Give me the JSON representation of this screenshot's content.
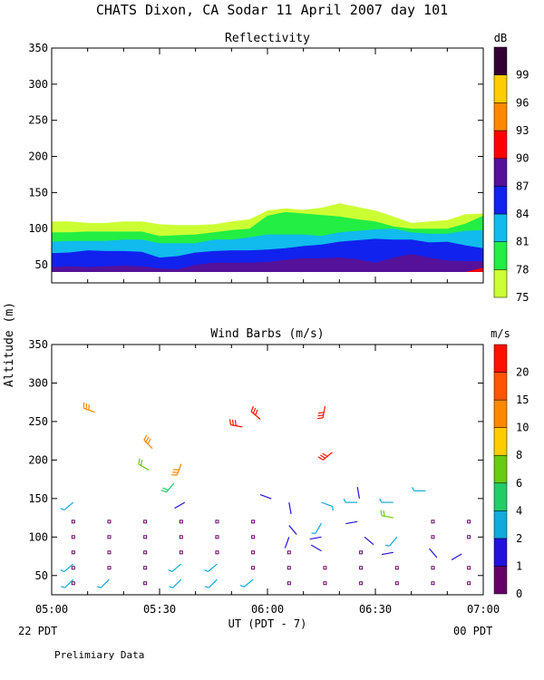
{
  "title": "CHATS Dixon, CA  Sodar  11 April 2007  day 101",
  "ylabel": "Altitude (m)",
  "xlabel": "UT  (PDT - 7)",
  "left_note": "22 PDT",
  "right_note": "00 PDT",
  "footer": "Prelimiary Data",
  "colors": {
    "scale": [
      "#ccff33",
      "#22ee44",
      "#11bbee",
      "#1122ee",
      "#551199",
      "#ff0000",
      "#ff8800",
      "#ffcc00",
      "#330033"
    ],
    "wind": [
      "#660066",
      "#2211dd",
      "#11aadd",
      "#22cc66",
      "#66cc11",
      "#ffcc00",
      "#ff8800",
      "#ff5500",
      "#ff1100"
    ]
  },
  "chart_data": [
    {
      "type": "area",
      "title": "Reflectivity",
      "xlabel": "",
      "ylabel": "Altitude (m)",
      "xlim_minutes_ut": [
        300,
        420
      ],
      "xticks": [
        "05:00",
        "05:30",
        "06:00",
        "06:30",
        "07:00"
      ],
      "ylim": [
        25,
        350
      ],
      "yticks": [
        50,
        100,
        150,
        200,
        250,
        300,
        350
      ],
      "colorbar_title": "dB",
      "colorbar_ticks": [
        75,
        78,
        81,
        84,
        87,
        90,
        93,
        96,
        99
      ],
      "x_minutes_ut": [
        300,
        305,
        310,
        315,
        320,
        325,
        330,
        335,
        340,
        345,
        350,
        355,
        360,
        365,
        370,
        375,
        380,
        385,
        390,
        395,
        400,
        405,
        410,
        415,
        420
      ],
      "floor": 40,
      "contours": [
        {
          "level_db": 75,
          "top": [
            110,
            110,
            108,
            108,
            110,
            110,
            106,
            105,
            105,
            106,
            110,
            113,
            125,
            128,
            126,
            129,
            135,
            130,
            125,
            117,
            108,
            110,
            112,
            120,
            121
          ]
        },
        {
          "level_db": 78,
          "top": [
            95,
            95,
            96,
            96,
            96,
            96,
            90,
            91,
            92,
            95,
            98,
            100,
            118,
            123,
            121,
            119,
            117,
            113,
            110,
            103,
            100,
            100,
            100,
            107,
            118
          ]
        },
        {
          "level_db": 81,
          "top": [
            82,
            83,
            83,
            83,
            85,
            85,
            80,
            80,
            80,
            85,
            85,
            88,
            92,
            92,
            92,
            90,
            95,
            97,
            99,
            100,
            95,
            93,
            93,
            97,
            98
          ]
        },
        {
          "level_db": 84,
          "top": [
            66,
            67,
            70,
            69,
            69,
            68,
            60,
            62,
            67,
            69,
            70,
            70,
            71,
            73,
            76,
            78,
            82,
            84,
            86,
            85,
            85,
            81,
            82,
            77,
            73
          ]
        },
        {
          "level_db": 87,
          "top": [
            47,
            48,
            47,
            48,
            49,
            48,
            45,
            44,
            50,
            53,
            53,
            53,
            54,
            57,
            59,
            59,
            60,
            58,
            53,
            60,
            65,
            60,
            56,
            55,
            55
          ]
        },
        {
          "level_db": 90,
          "top": [
            40,
            40,
            40,
            40,
            40,
            40,
            40,
            40,
            40,
            40,
            40,
            40,
            40,
            40,
            40,
            40,
            40,
            40,
            40,
            40,
            40,
            40,
            40,
            40,
            46
          ]
        }
      ]
    },
    {
      "type": "scatter",
      "title": "Wind Barbs (m/s)",
      "xlabel": "UT  (PDT - 7)",
      "ylabel": "Altitude (m)",
      "xlim_minutes_ut": [
        300,
        420
      ],
      "xticks": [
        "05:00",
        "05:30",
        "06:00",
        "06:30",
        "07:00"
      ],
      "ylim": [
        25,
        350
      ],
      "yticks": [
        50,
        100,
        150,
        200,
        250,
        300,
        350
      ],
      "colorbar_title": "m/s",
      "colorbar_ticks": [
        0,
        1,
        2,
        4,
        6,
        8,
        10,
        15,
        20
      ],
      "barbs": [
        {
          "t": 306,
          "z": 45,
          "dir": 225,
          "speed": 2
        },
        {
          "t": 306,
          "z": 65,
          "dir": 230,
          "speed": 2
        },
        {
          "t": 306,
          "z": 145,
          "dir": 230,
          "speed": 2
        },
        {
          "t": 316,
          "z": 45,
          "dir": 225,
          "speed": 2
        },
        {
          "t": 312,
          "z": 262,
          "dir": 290,
          "speed": 10
        },
        {
          "t": 327,
          "z": 187,
          "dir": 300,
          "speed": 6
        },
        {
          "t": 328,
          "z": 215,
          "dir": 315,
          "speed": 10
        },
        {
          "t": 334,
          "z": 170,
          "dir": 220,
          "speed": 4
        },
        {
          "t": 336,
          "z": 195,
          "dir": 200,
          "speed": 10
        },
        {
          "t": 336,
          "z": 45,
          "dir": 225,
          "speed": 2
        },
        {
          "t": 336,
          "z": 65,
          "dir": 230,
          "speed": 2
        },
        {
          "t": 337,
          "z": 145,
          "dir": 240,
          "speed": 1
        },
        {
          "t": 346,
          "z": 45,
          "dir": 225,
          "speed": 2
        },
        {
          "t": 346,
          "z": 65,
          "dir": 230,
          "speed": 2
        },
        {
          "t": 353,
          "z": 243,
          "dir": 280,
          "speed": 20
        },
        {
          "t": 358,
          "z": 253,
          "dir": 310,
          "speed": 20
        },
        {
          "t": 356,
          "z": 45,
          "dir": 230,
          "speed": 2
        },
        {
          "t": 358,
          "z": 155,
          "dir": 110,
          "speed": 1
        },
        {
          "t": 366,
          "z": 145,
          "dir": 170,
          "speed": 1
        },
        {
          "t": 366,
          "z": 115,
          "dir": 140,
          "speed": 1
        },
        {
          "t": 366,
          "z": 100,
          "dir": 200,
          "speed": 1
        },
        {
          "t": 376,
          "z": 270,
          "dir": 190,
          "speed": 20
        },
        {
          "t": 378,
          "z": 210,
          "dir": 230,
          "speed": 20
        },
        {
          "t": 375,
          "z": 145,
          "dir": 110,
          "speed": 2
        },
        {
          "t": 375,
          "z": 118,
          "dir": 210,
          "speed": 2
        },
        {
          "t": 375,
          "z": 100,
          "dir": 260,
          "speed": 1
        },
        {
          "t": 375,
          "z": 82,
          "dir": 300,
          "speed": 1
        },
        {
          "t": 385,
          "z": 165,
          "dir": 170,
          "speed": 1
        },
        {
          "t": 385,
          "z": 145,
          "dir": 270,
          "speed": 2
        },
        {
          "t": 385,
          "z": 120,
          "dir": 260,
          "speed": 1
        },
        {
          "t": 387,
          "z": 100,
          "dir": 130,
          "speed": 1
        },
        {
          "t": 395,
          "z": 145,
          "dir": 270,
          "speed": 2
        },
        {
          "t": 395,
          "z": 125,
          "dir": 280,
          "speed": 6
        },
        {
          "t": 396,
          "z": 100,
          "dir": 220,
          "speed": 2
        },
        {
          "t": 395,
          "z": 80,
          "dir": 260,
          "speed": 1
        },
        {
          "t": 404,
          "z": 160,
          "dir": 270,
          "speed": 2
        },
        {
          "t": 405,
          "z": 85,
          "dir": 140,
          "speed": 1
        },
        {
          "t": 414,
          "z": 78,
          "dir": 240,
          "speed": 1
        }
      ],
      "calm_points": [
        [
          306,
          40
        ],
        [
          306,
          60
        ],
        [
          306,
          80
        ],
        [
          306,
          100
        ],
        [
          306,
          120
        ],
        [
          316,
          60
        ],
        [
          316,
          80
        ],
        [
          316,
          100
        ],
        [
          316,
          120
        ],
        [
          326,
          40
        ],
        [
          326,
          60
        ],
        [
          326,
          80
        ],
        [
          326,
          100
        ],
        [
          326,
          120
        ],
        [
          336,
          80
        ],
        [
          336,
          100
        ],
        [
          336,
          120
        ],
        [
          346,
          80
        ],
        [
          346,
          100
        ],
        [
          346,
          120
        ],
        [
          356,
          60
        ],
        [
          356,
          80
        ],
        [
          356,
          100
        ],
        [
          356,
          120
        ],
        [
          366,
          40
        ],
        [
          366,
          60
        ],
        [
          366,
          80
        ],
        [
          376,
          40
        ],
        [
          376,
          60
        ],
        [
          386,
          40
        ],
        [
          386,
          60
        ],
        [
          386,
          80
        ],
        [
          396,
          40
        ],
        [
          396,
          60
        ],
        [
          406,
          40
        ],
        [
          406,
          60
        ],
        [
          406,
          100
        ],
        [
          406,
          120
        ],
        [
          416,
          40
        ],
        [
          416,
          60
        ],
        [
          416,
          100
        ],
        [
          416,
          120
        ]
      ]
    }
  ]
}
